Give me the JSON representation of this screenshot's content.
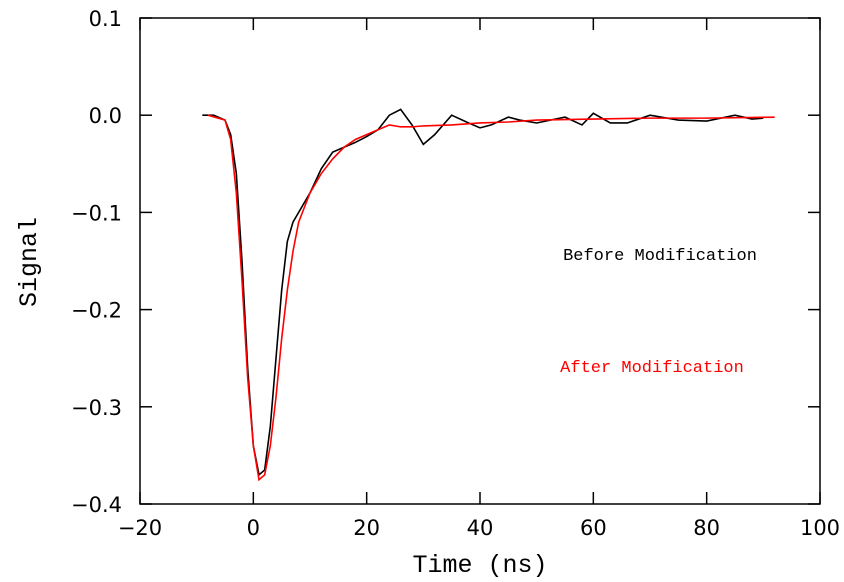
{
  "chart_data": {
    "type": "line",
    "x_label": "Time (ns)",
    "y_label": "Signal",
    "xlim": [
      -20,
      100
    ],
    "ylim": [
      -0.4,
      0.1
    ],
    "xticks": [
      {
        "value": -20,
        "label": "−20"
      },
      0,
      20,
      40,
      60,
      80,
      100
    ],
    "yticks": [
      {
        "value": -0.4,
        "label": "−0.4"
      },
      {
        "value": -0.3,
        "label": "−0.3"
      },
      {
        "value": -0.2,
        "label": "−0.2"
      },
      {
        "value": -0.1,
        "label": "−0.1"
      },
      {
        "value": 0,
        "label": "0.0"
      },
      0.1
    ],
    "series": [
      {
        "name": "Before Modification",
        "color": "#000000",
        "x": [
          -9,
          -7,
          -5,
          -4,
          -3,
          -2,
          -1,
          0,
          1,
          2,
          3,
          4,
          5,
          6,
          7,
          8,
          10,
          12,
          14,
          16,
          18,
          20,
          22,
          24,
          26,
          28,
          30,
          32,
          35,
          38,
          40,
          42,
          45,
          47,
          50,
          55,
          58,
          60,
          63,
          66,
          70,
          75,
          80,
          85,
          88,
          90
        ],
        "values": [
          0.0,
          0.0,
          -0.005,
          -0.02,
          -0.06,
          -0.15,
          -0.26,
          -0.34,
          -0.37,
          -0.365,
          -0.32,
          -0.25,
          -0.18,
          -0.13,
          -0.11,
          -0.1,
          -0.08,
          -0.055,
          -0.038,
          -0.033,
          -0.028,
          -0.022,
          -0.015,
          0.0,
          0.006,
          -0.01,
          -0.03,
          -0.02,
          0.0,
          -0.008,
          -0.013,
          -0.01,
          -0.002,
          -0.005,
          -0.008,
          -0.002,
          -0.01,
          0.002,
          -0.008,
          -0.008,
          0.0,
          -0.005,
          -0.006,
          0.0,
          -0.004,
          -0.003
        ]
      },
      {
        "name": "After Modification",
        "color": "#ff0000",
        "x": [
          -8,
          -5,
          -4,
          -3,
          -2,
          -1,
          0,
          1,
          2,
          3,
          4,
          5,
          6,
          7,
          8,
          10,
          12,
          14,
          16,
          18,
          20,
          22,
          24,
          26,
          28,
          30,
          35,
          40,
          45,
          50,
          60,
          70,
          80,
          92
        ],
        "values": [
          0.0,
          -0.005,
          -0.025,
          -0.08,
          -0.17,
          -0.27,
          -0.34,
          -0.375,
          -0.37,
          -0.34,
          -0.29,
          -0.23,
          -0.18,
          -0.14,
          -0.11,
          -0.08,
          -0.06,
          -0.045,
          -0.033,
          -0.025,
          -0.02,
          -0.015,
          -0.01,
          -0.012,
          -0.012,
          -0.011,
          -0.01,
          -0.008,
          -0.007,
          -0.005,
          -0.004,
          -0.003,
          -0.003,
          -0.002
        ]
      }
    ]
  }
}
